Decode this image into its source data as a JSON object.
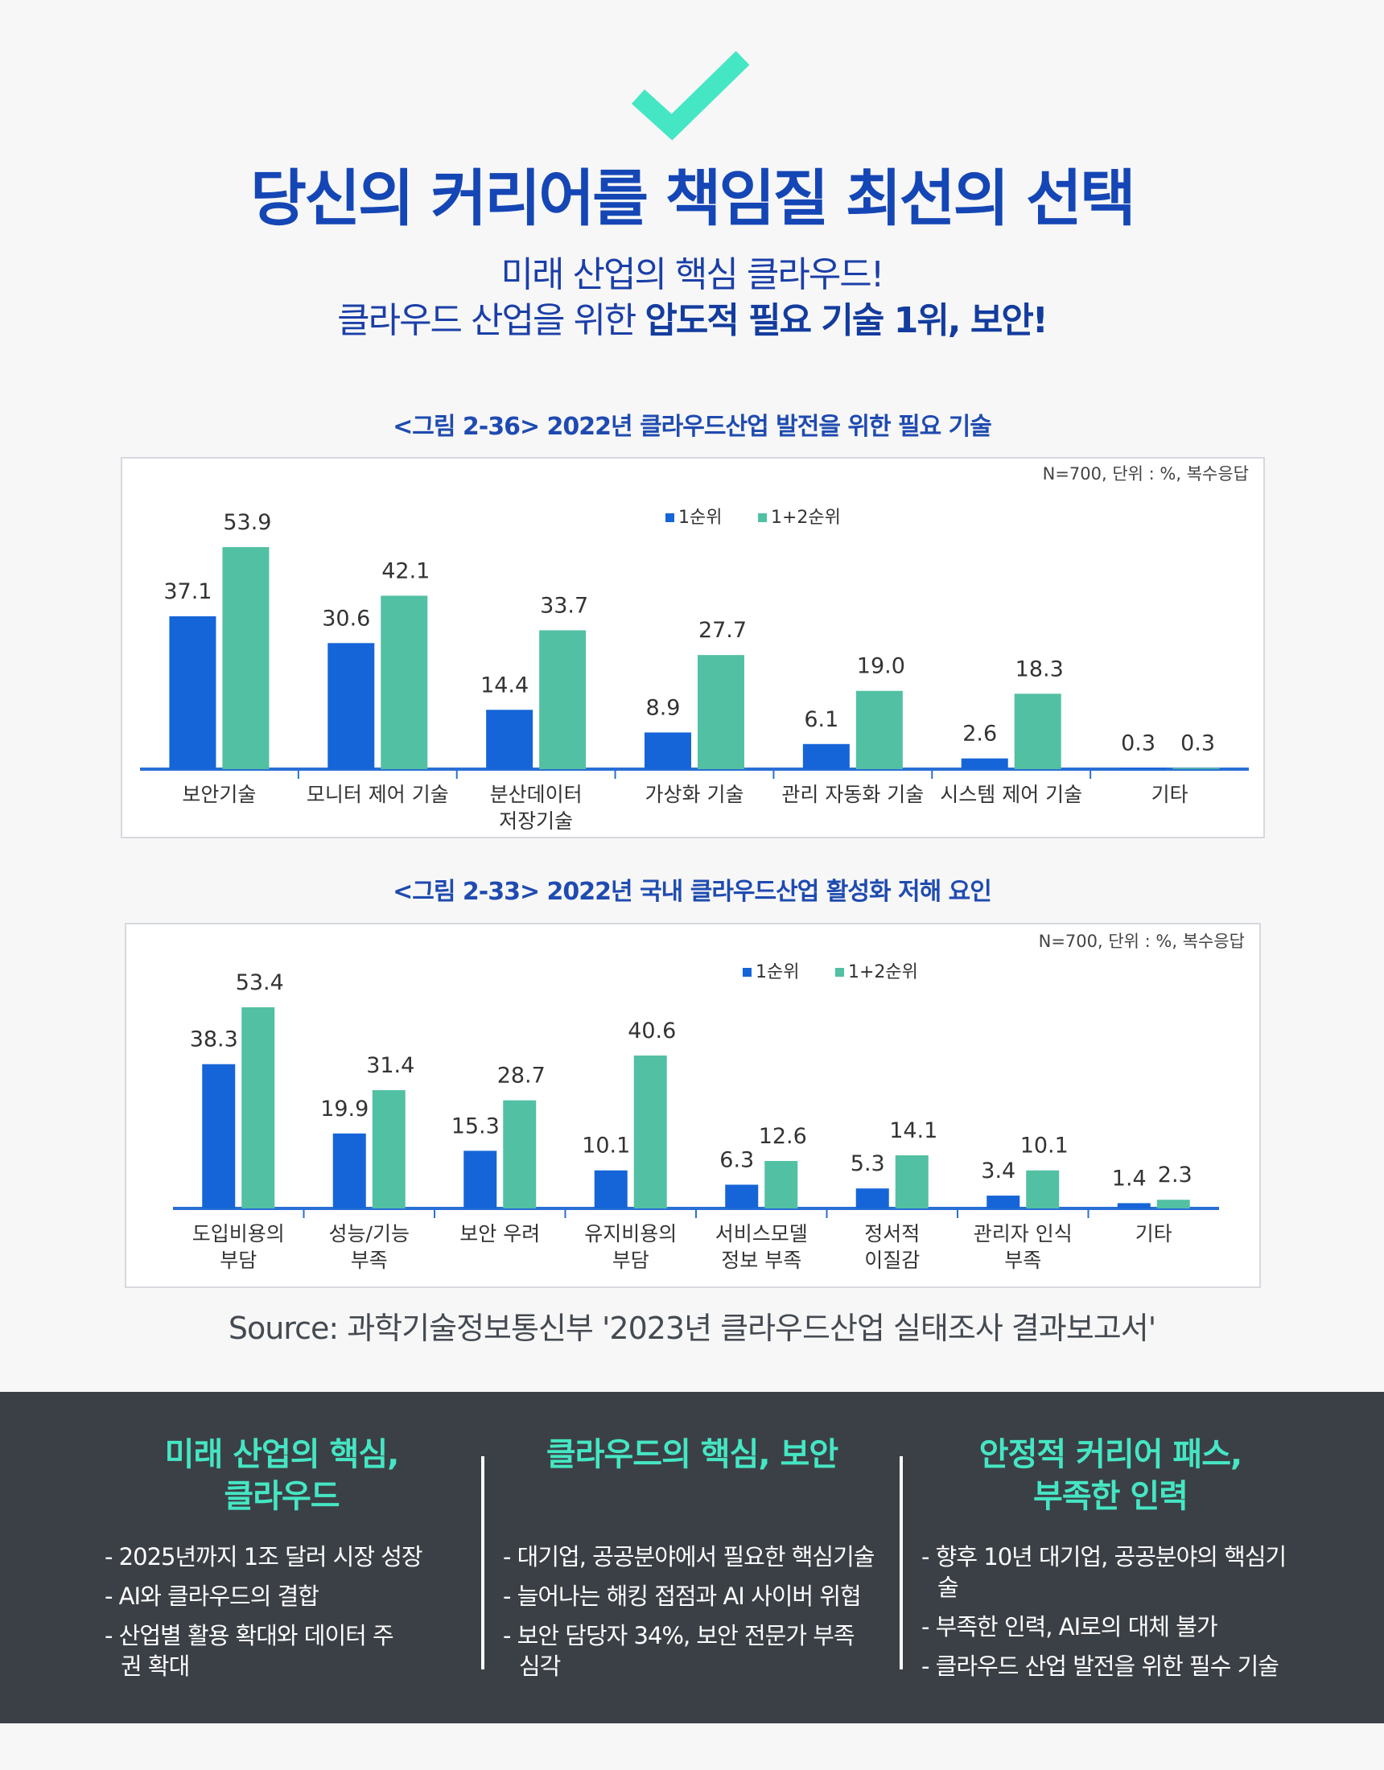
{
  "header": {
    "icon": "checkmark-icon",
    "accent_color": "#45e6c3",
    "title": "당신의 커리어를 책임질 최선의 선택",
    "subtitle_line1": "미래 산업의 핵심 클라우드!",
    "subtitle_line2_prefix": "클라우드 산업을 위한 ",
    "subtitle_line2_bold": "압도적 필요 기술 1위, 보안!"
  },
  "chart_data": [
    {
      "type": "bar",
      "title": "<그림 2-36> 2022년 클라우드산업 발전을 위한 필요 기술",
      "note": "N=700, 단위 : %, 복수응답",
      "categories": [
        "보안기술",
        "모니터 제어 기술",
        "분산데이터\n저장기술",
        "가상화 기술",
        "관리 자동화 기술",
        "시스템 제어 기술",
        "기타"
      ],
      "series": [
        {
          "name": "1순위",
          "color": "#1565d8",
          "values": [
            37.1,
            30.6,
            14.4,
            8.9,
            6.1,
            2.6,
            0.3
          ]
        },
        {
          "name": "1+2순위",
          "color": "#52c0a3",
          "values": [
            53.9,
            42.1,
            33.7,
            27.7,
            19.0,
            18.3,
            0.3
          ]
        }
      ],
      "ylim": [
        0,
        55
      ],
      "legend": "top-center"
    },
    {
      "type": "bar",
      "title": "<그림 2-33> 2022년 국내 클라우드산업 활성화 저해 요인",
      "note": "N=700, 단위 : %, 복수응답",
      "categories": [
        "도입비용의\n부담",
        "성능/기능\n부족",
        "보안 우려",
        "유지비용의\n부담",
        "서비스모델\n정보 부족",
        "정서적\n이질감",
        "관리자 인식\n부족",
        "기타"
      ],
      "series": [
        {
          "name": "1순위",
          "color": "#1565d8",
          "values": [
            38.3,
            19.9,
            15.3,
            10.1,
            6.3,
            5.3,
            3.4,
            1.4
          ]
        },
        {
          "name": "1+2순위",
          "color": "#52c0a3",
          "values": [
            53.4,
            31.4,
            28.7,
            40.6,
            12.6,
            14.1,
            10.1,
            2.3
          ]
        }
      ],
      "ylim": [
        0,
        55
      ],
      "legend": "top-center"
    }
  ],
  "source_text": "Source: 과학기술정보통신부 '2023년 클라우드산업 실태조사 결과보고서'",
  "columns": [
    {
      "title_line1": "미래 산업의 핵심,",
      "title_line2": "클라우드",
      "items": [
        "- 2025년까지 1조 달러 시장 성장",
        "- AI와 클라우드의 결합",
        "- 산업별 활용 확대와 데이터 주권 확대"
      ]
    },
    {
      "title_line1": "클라우드의 핵심, 보안",
      "title_line2": "",
      "items": [
        "- 대기업, 공공분야에서 필요한 핵심기술",
        "- 늘어나는 해킹 접점과 AI 사이버 위협",
        "- 보안 담당자 34%, 보안 전문가 부족 심각"
      ]
    },
    {
      "title_line1": "안정적 커리어 패스,",
      "title_line2": "부족한 인력",
      "items": [
        "- 향후 10년 대기업, 공공분야의 핵심기술",
        "- 부족한 인력, AI로의 대체 불가",
        "- 클라우드 산업 발전을 위한 필수 기술"
      ]
    }
  ]
}
